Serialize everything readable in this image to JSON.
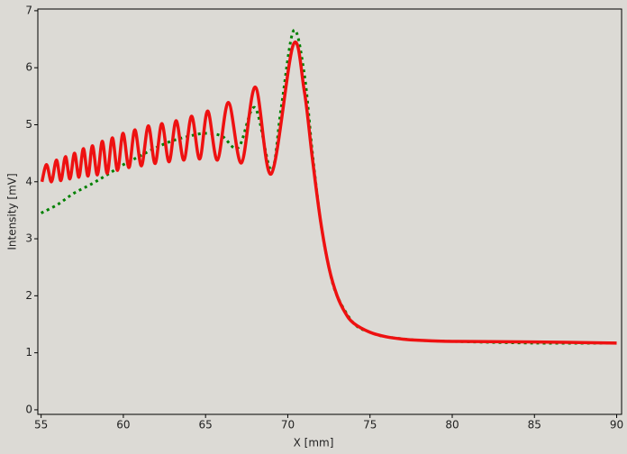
{
  "chart_data": {
    "type": "line",
    "x_label": "X [mm]",
    "y_label": "Intensity [mV]",
    "xlim": [
      54.8,
      90.3
    ],
    "xticks": [
      55,
      60,
      65,
      70,
      75,
      80,
      85,
      90
    ],
    "ylim": [
      -0.08,
      7.03
    ],
    "yticks": [
      0,
      1,
      2,
      3,
      4,
      5,
      6,
      7
    ],
    "series": [
      {
        "color": "#008000",
        "style": "dotted",
        "x": [
          55.0,
          56.0,
          57.0,
          58.0,
          59.0,
          60.0,
          61.0,
          62.0,
          63.0,
          64.0,
          65.0,
          66.0,
          67.0,
          68.0,
          69.0,
          69.6,
          70.35,
          71.0,
          71.5,
          72.0,
          72.5,
          73.0,
          74.0,
          75.0,
          76.0,
          78.0,
          80.0,
          85.0,
          90.0
        ],
        "values": [
          3.45,
          3.6,
          3.8,
          3.95,
          4.12,
          4.3,
          4.45,
          4.6,
          4.72,
          4.8,
          4.85,
          4.8,
          4.6,
          5.3,
          4.2,
          5.3,
          6.65,
          5.9,
          4.5,
          3.3,
          2.5,
          2.0,
          1.52,
          1.36,
          1.28,
          1.22,
          1.2,
          1.17,
          1.17
        ]
      },
      {
        "color": "#ee1111",
        "style": "solid",
        "x": [
          55.05,
          55.33,
          55.63,
          55.93,
          56.2,
          56.48,
          56.75,
          57.03,
          57.3,
          57.57,
          57.85,
          58.12,
          58.42,
          58.72,
          59.02,
          59.33,
          59.65,
          59.98,
          60.34,
          60.7,
          61.1,
          61.52,
          61.93,
          62.34,
          62.78,
          63.21,
          63.68,
          64.15,
          64.64,
          65.13,
          65.72,
          66.39,
          67.18,
          68.03,
          69.0,
          70.33,
          71.0,
          71.5,
          72.0,
          72.5,
          73.0,
          73.5,
          74.0,
          75.0,
          76.0,
          77.0,
          78.0,
          80.0,
          85.0,
          90.0
        ],
        "values": [
          4.0,
          4.3,
          4.0,
          4.38,
          4.02,
          4.44,
          4.05,
          4.5,
          4.08,
          4.58,
          4.1,
          4.63,
          4.12,
          4.71,
          4.15,
          4.77,
          4.2,
          4.85,
          4.25,
          4.91,
          4.28,
          4.98,
          4.32,
          5.02,
          4.35,
          5.07,
          4.38,
          5.15,
          4.4,
          5.24,
          4.38,
          5.39,
          4.33,
          5.66,
          4.14,
          6.4,
          5.6,
          4.4,
          3.3,
          2.5,
          2.0,
          1.7,
          1.52,
          1.36,
          1.28,
          1.24,
          1.22,
          1.2,
          1.19,
          1.17
        ]
      }
    ]
  }
}
